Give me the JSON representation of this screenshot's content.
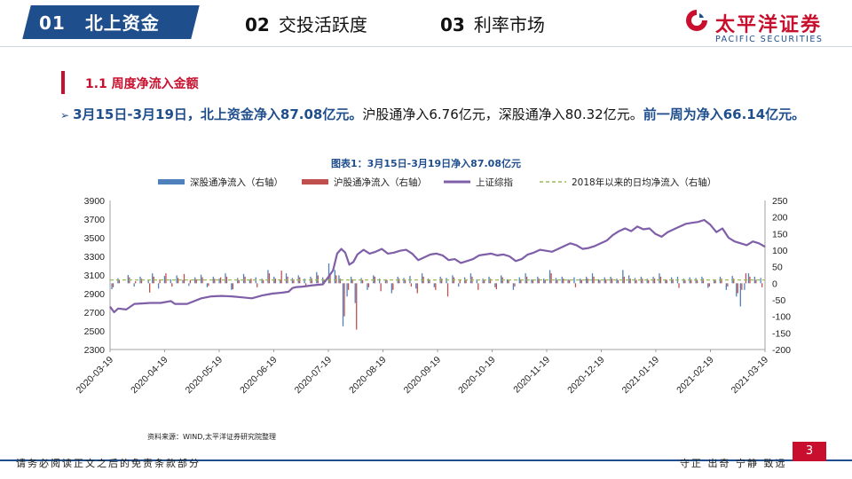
{
  "header": {
    "tabs": [
      {
        "num": "01",
        "label": "北上资金",
        "active": true
      },
      {
        "num": "02",
        "label": "交投活跃度",
        "active": false
      },
      {
        "num": "03",
        "label": "利率市场",
        "active": false
      }
    ],
    "logo_cn": "太平洋证券",
    "logo_en": "PACIFIC SECURITIES"
  },
  "section": {
    "title": "1.1 周度净流入金额"
  },
  "summary": {
    "part1": "3月15日-3月19日，北上资金净入87.08亿元。",
    "part2": "沪股通净入6.76亿元，深股通净入80.32亿元。",
    "part3": "前一周为净入66.14亿元。"
  },
  "chart_data": {
    "type": "bar+line",
    "title": "图表1：3月15日-3月19日净入87.08亿元",
    "legend": [
      {
        "name": "深股通净流入（右轴）",
        "kind": "bar",
        "color": "#4f81bd"
      },
      {
        "name": "沪股通净流入（右轴）",
        "kind": "bar",
        "color": "#c0504d"
      },
      {
        "name": "上证综指",
        "kind": "line",
        "color": "#7f5fa8"
      },
      {
        "name": "2018年以来的日均净流入（右轴）",
        "kind": "dashed",
        "color": "#9bbb59"
      }
    ],
    "left_axis": {
      "min": 2300,
      "max": 3900,
      "ticks": [
        2300,
        2500,
        2700,
        2900,
        3100,
        3300,
        3500,
        3700,
        3900
      ]
    },
    "right_axis": {
      "min": -200,
      "max": 250,
      "ticks": [
        -200,
        -150,
        -100,
        -50,
        0,
        50,
        100,
        150,
        200,
        250
      ]
    },
    "x_ticks": [
      "2020-03-19",
      "2020-04-19",
      "2020-05-19",
      "2020-06-19",
      "2020-07-19",
      "2020-08-19",
      "2020-09-19",
      "2020-10-19",
      "2020-11-19",
      "2020-12-19",
      "2021-01-19",
      "2021-02-19",
      "2021-03-19"
    ],
    "daily_avg_right_axis": 10,
    "index_line_points": [
      [
        0,
        2760
      ],
      [
        2,
        2700
      ],
      [
        4,
        2740
      ],
      [
        8,
        2730
      ],
      [
        12,
        2790
      ],
      [
        20,
        2800
      ],
      [
        25,
        2800
      ],
      [
        30,
        2820
      ],
      [
        32,
        2790
      ],
      [
        38,
        2790
      ],
      [
        45,
        2850
      ],
      [
        50,
        2870
      ],
      [
        55,
        2875
      ],
      [
        60,
        2870
      ],
      [
        65,
        2860
      ],
      [
        70,
        2850
      ],
      [
        75,
        2880
      ],
      [
        80,
        2900
      ],
      [
        85,
        2910
      ],
      [
        88,
        2920
      ],
      [
        90,
        2960
      ],
      [
        92,
        2970
      ],
      [
        95,
        2975
      ],
      [
        100,
        2990
      ],
      [
        105,
        3000
      ],
      [
        108,
        3090
      ],
      [
        110,
        3150
      ],
      [
        112,
        3330
      ],
      [
        114,
        3380
      ],
      [
        116,
        3340
      ],
      [
        118,
        3210
      ],
      [
        120,
        3240
      ],
      [
        122,
        3320
      ],
      [
        125,
        3370
      ],
      [
        128,
        3330
      ],
      [
        131,
        3350
      ],
      [
        134,
        3380
      ],
      [
        137,
        3330
      ],
      [
        140,
        3340
      ],
      [
        143,
        3360
      ],
      [
        146,
        3370
      ],
      [
        149,
        3330
      ],
      [
        152,
        3260
      ],
      [
        155,
        3290
      ],
      [
        158,
        3320
      ],
      [
        161,
        3330
      ],
      [
        164,
        3310
      ],
      [
        167,
        3260
      ],
      [
        170,
        3270
      ],
      [
        173,
        3230
      ],
      [
        176,
        3250
      ],
      [
        179,
        3270
      ],
      [
        182,
        3310
      ],
      [
        185,
        3320
      ],
      [
        188,
        3330
      ],
      [
        191,
        3310
      ],
      [
        194,
        3320
      ],
      [
        197,
        3300
      ],
      [
        200,
        3250
      ],
      [
        203,
        3270
      ],
      [
        206,
        3320
      ],
      [
        209,
        3340
      ],
      [
        212,
        3370
      ],
      [
        215,
        3360
      ],
      [
        218,
        3350
      ],
      [
        221,
        3380
      ],
      [
        224,
        3410
      ],
      [
        227,
        3440
      ],
      [
        230,
        3420
      ],
      [
        233,
        3380
      ],
      [
        236,
        3390
      ],
      [
        239,
        3410
      ],
      [
        242,
        3440
      ],
      [
        245,
        3470
      ],
      [
        248,
        3530
      ],
      [
        251,
        3570
      ],
      [
        254,
        3600
      ],
      [
        257,
        3570
      ],
      [
        260,
        3620
      ],
      [
        263,
        3590
      ],
      [
        266,
        3600
      ],
      [
        269,
        3540
      ],
      [
        272,
        3510
      ],
      [
        275,
        3560
      ],
      [
        278,
        3590
      ],
      [
        281,
        3620
      ],
      [
        284,
        3650
      ],
      [
        287,
        3660
      ],
      [
        290,
        3670
      ],
      [
        293,
        3690
      ],
      [
        296,
        3640
      ],
      [
        299,
        3560
      ],
      [
        302,
        3600
      ],
      [
        305,
        3500
      ],
      [
        308,
        3460
      ],
      [
        311,
        3440
      ],
      [
        314,
        3420
      ],
      [
        317,
        3460
      ],
      [
        320,
        3440
      ],
      [
        323,
        3404
      ]
    ],
    "bars_right_axis": [
      {
        "i": 1,
        "sz": -18,
        "sh": -12
      },
      {
        "i": 4,
        "sz": 15,
        "sh": 10
      },
      {
        "i": 9,
        "sz": 25,
        "sh": 18
      },
      {
        "i": 12,
        "sz": -10,
        "sh": 6
      },
      {
        "i": 15,
        "sz": 20,
        "sh": 14
      },
      {
        "i": 19,
        "sz": 10,
        "sh": -28
      },
      {
        "i": 21,
        "sz": 30,
        "sh": 20
      },
      {
        "i": 24,
        "sz": -16,
        "sh": 12
      },
      {
        "i": 27,
        "sz": 22,
        "sh": 30
      },
      {
        "i": 30,
        "sz": 12,
        "sh": -10
      },
      {
        "i": 33,
        "sz": 24,
        "sh": 16
      },
      {
        "i": 36,
        "sz": 10,
        "sh": 28
      },
      {
        "i": 39,
        "sz": -8,
        "sh": 10
      },
      {
        "i": 42,
        "sz": 18,
        "sh": 12
      },
      {
        "i": 45,
        "sz": 26,
        "sh": 18
      },
      {
        "i": 48,
        "sz": -12,
        "sh": -8
      },
      {
        "i": 51,
        "sz": 20,
        "sh": 14
      },
      {
        "i": 54,
        "sz": 14,
        "sh": 18
      },
      {
        "i": 57,
        "sz": 30,
        "sh": 20
      },
      {
        "i": 60,
        "sz": -20,
        "sh": -18
      },
      {
        "i": 63,
        "sz": 16,
        "sh": 10
      },
      {
        "i": 66,
        "sz": 28,
        "sh": 20
      },
      {
        "i": 69,
        "sz": 12,
        "sh": 14
      },
      {
        "i": 72,
        "sz": 18,
        "sh": -12
      },
      {
        "i": 75,
        "sz": 14,
        "sh": 10
      },
      {
        "i": 78,
        "sz": 40,
        "sh": 30
      },
      {
        "i": 81,
        "sz": 20,
        "sh": 14
      },
      {
        "i": 84,
        "sz": 12,
        "sh": 38
      },
      {
        "i": 87,
        "sz": 30,
        "sh": 20
      },
      {
        "i": 90,
        "sz": 16,
        "sh": 12
      },
      {
        "i": 93,
        "sz": 24,
        "sh": 18
      },
      {
        "i": 96,
        "sz": 14,
        "sh": -10
      },
      {
        "i": 99,
        "sz": 20,
        "sh": 14
      },
      {
        "i": 102,
        "sz": 34,
        "sh": 24
      },
      {
        "i": 105,
        "sz": 18,
        "sh": 12
      },
      {
        "i": 108,
        "sz": 60,
        "sh": 30
      },
      {
        "i": 111,
        "sz": 40,
        "sh": 24
      },
      {
        "i": 113,
        "sz": 24,
        "sh": 14
      },
      {
        "i": 115,
        "sz": -130,
        "sh": -100
      },
      {
        "i": 117,
        "sz": -40,
        "sh": -20
      },
      {
        "i": 119,
        "sz": 20,
        "sh": 12
      },
      {
        "i": 121,
        "sz": -60,
        "sh": -140
      },
      {
        "i": 124,
        "sz": 16,
        "sh": 10
      },
      {
        "i": 127,
        "sz": -20,
        "sh": -12
      },
      {
        "i": 130,
        "sz": 24,
        "sh": 20
      },
      {
        "i": 133,
        "sz": 14,
        "sh": -24
      },
      {
        "i": 136,
        "sz": 12,
        "sh": 10
      },
      {
        "i": 139,
        "sz": -30,
        "sh": -20
      },
      {
        "i": 142,
        "sz": 20,
        "sh": 14
      },
      {
        "i": 145,
        "sz": 16,
        "sh": 12
      },
      {
        "i": 148,
        "sz": 22,
        "sh": -10
      },
      {
        "i": 151,
        "sz": -16,
        "sh": -30
      },
      {
        "i": 154,
        "sz": 30,
        "sh": 20
      },
      {
        "i": 157,
        "sz": 14,
        "sh": 10
      },
      {
        "i": 160,
        "sz": -12,
        "sh": -20
      },
      {
        "i": 163,
        "sz": 20,
        "sh": 14
      },
      {
        "i": 166,
        "sz": 16,
        "sh": -40
      },
      {
        "i": 169,
        "sz": 24,
        "sh": 18
      },
      {
        "i": 172,
        "sz": -10,
        "sh": 12
      },
      {
        "i": 175,
        "sz": 18,
        "sh": 12
      },
      {
        "i": 178,
        "sz": 30,
        "sh": 20
      },
      {
        "i": 181,
        "sz": 12,
        "sh": -20
      },
      {
        "i": 184,
        "sz": 14,
        "sh": 10
      },
      {
        "i": 187,
        "sz": 20,
        "sh": 14
      },
      {
        "i": 190,
        "sz": -12,
        "sh": -18
      },
      {
        "i": 193,
        "sz": 24,
        "sh": 18
      },
      {
        "i": 196,
        "sz": 12,
        "sh": 10
      },
      {
        "i": 199,
        "sz": -20,
        "sh": -10
      },
      {
        "i": 202,
        "sz": 18,
        "sh": 12
      },
      {
        "i": 205,
        "sz": 30,
        "sh": 20
      },
      {
        "i": 208,
        "sz": 12,
        "sh": 10
      },
      {
        "i": 211,
        "sz": 20,
        "sh": 14
      },
      {
        "i": 214,
        "sz": 14,
        "sh": 10
      },
      {
        "i": 217,
        "sz": 40,
        "sh": 30
      },
      {
        "i": 220,
        "sz": 16,
        "sh": 10
      },
      {
        "i": 223,
        "sz": 20,
        "sh": 14
      },
      {
        "i": 226,
        "sz": 12,
        "sh": 10
      },
      {
        "i": 229,
        "sz": 18,
        "sh": -12
      },
      {
        "i": 232,
        "sz": 14,
        "sh": 10
      },
      {
        "i": 235,
        "sz": 20,
        "sh": 14
      },
      {
        "i": 238,
        "sz": 30,
        "sh": 20
      },
      {
        "i": 241,
        "sz": 12,
        "sh": 10
      },
      {
        "i": 244,
        "sz": 18,
        "sh": 12
      },
      {
        "i": 247,
        "sz": 20,
        "sh": 14
      },
      {
        "i": 250,
        "sz": 14,
        "sh": 10
      },
      {
        "i": 253,
        "sz": 40,
        "sh": 20
      },
      {
        "i": 256,
        "sz": 24,
        "sh": 14
      },
      {
        "i": 259,
        "sz": 16,
        "sh": 10
      },
      {
        "i": 262,
        "sz": 20,
        "sh": 14
      },
      {
        "i": 265,
        "sz": 14,
        "sh": 10
      },
      {
        "i": 268,
        "sz": 20,
        "sh": 14
      },
      {
        "i": 271,
        "sz": 30,
        "sh": 20
      },
      {
        "i": 274,
        "sz": 12,
        "sh": 10
      },
      {
        "i": 277,
        "sz": 18,
        "sh": 12
      },
      {
        "i": 280,
        "sz": 20,
        "sh": -14
      },
      {
        "i": 283,
        "sz": 14,
        "sh": 10
      },
      {
        "i": 286,
        "sz": 18,
        "sh": 12
      },
      {
        "i": 289,
        "sz": 16,
        "sh": 10
      },
      {
        "i": 292,
        "sz": 20,
        "sh": 14
      },
      {
        "i": 295,
        "sz": -14,
        "sh": -10
      },
      {
        "i": 298,
        "sz": 12,
        "sh": 8
      },
      {
        "i": 301,
        "sz": 20,
        "sh": 14
      },
      {
        "i": 304,
        "sz": -20,
        "sh": -10
      },
      {
        "i": 307,
        "sz": 22,
        "sh": 14
      },
      {
        "i": 309,
        "sz": -40,
        "sh": -30
      },
      {
        "i": 311,
        "sz": -70,
        "sh": -20
      },
      {
        "i": 313,
        "sz": -20,
        "sh": 30
      },
      {
        "i": 315,
        "sz": 30,
        "sh": 20
      },
      {
        "i": 318,
        "sz": 20,
        "sh": 10
      },
      {
        "i": 321,
        "sz": 16,
        "sh": -12
      }
    ]
  },
  "source": "资料来源：WIND,太平洋证券研究院整理",
  "footer": {
    "left": "请务必阅读正文之后的免责条款部分",
    "right": "守正 出奇 宁静 致远",
    "page": "3"
  }
}
